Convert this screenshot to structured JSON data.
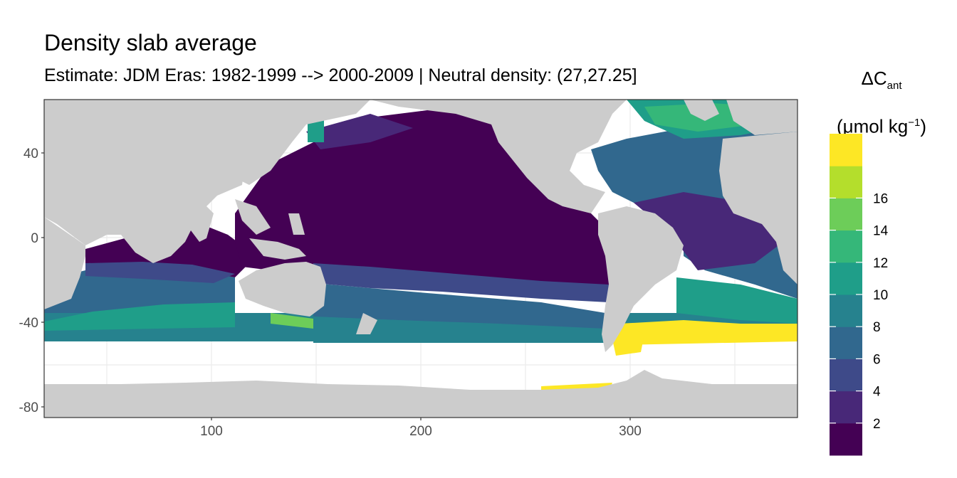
{
  "title": "Density slab average",
  "subtitle": "Estimate: JDM Eras: 1982-1999 --> 2000-2009 | Neutral density: (27,27.25]",
  "legend": {
    "symbol": "ΔC",
    "subscript": "ant",
    "unit_prefix": "(μmol kg",
    "unit_sup": "−1",
    "unit_suffix": ")",
    "ticks": [
      "2",
      "4",
      "6",
      "8",
      "10",
      "12",
      "14",
      "16"
    ],
    "colors": [
      "#440154",
      "#482878",
      "#3E4A89",
      "#31688E",
      "#26828E",
      "#1F9E89",
      "#35B779",
      "#6DCD59",
      "#B4DE2C",
      "#FDE725"
    ]
  },
  "axes": {
    "x_ticks": [
      "100",
      "200",
      "300"
    ],
    "y_ticks": [
      "40",
      "0",
      "-40",
      "-80"
    ]
  },
  "colors": {
    "land": "#cccccc",
    "no_data": "#ffffff",
    "grid": "#ebebeb"
  }
}
